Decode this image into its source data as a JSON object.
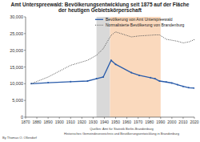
{
  "chart_data": {
    "type": "line",
    "title": "Amt Unterspreewald: Bevölkerungsentwicklung seit 1875 auf der Fläche der heutigen Gebietskörperschaft",
    "x": [
      1875,
      1890,
      1910,
      1925,
      1933,
      1939,
      1946,
      1950,
      1964,
      1971,
      1981,
      1985,
      1989,
      1995,
      2000,
      2005,
      2010,
      2015,
      2020
    ],
    "series": [
      {
        "name": "Bevölkerung von Amt Unterspreewald",
        "color": "#2a5caa",
        "marker": "circle",
        "line_style": "solid",
        "values": [
          10000,
          10300,
          10600,
          10800,
          11500,
          12000,
          17000,
          15800,
          13300,
          12500,
          11800,
          11500,
          10800,
          10500,
          10200,
          9700,
          9200,
          8800,
          8700
        ]
      },
      {
        "name": "Normalisierte Bevölkerung von Brandenburg",
        "color": "#555555",
        "marker": "none",
        "line_style": "dotted",
        "values": [
          10000,
          12000,
          15500,
          17000,
          18500,
          20500,
          24500,
          25500,
          24000,
          24300,
          24500,
          24600,
          24600,
          23300,
          23000,
          22700,
          22200,
          22500,
          23200
        ]
      }
    ],
    "periods": [
      {
        "start": 1933,
        "end": 1945,
        "color": "#d9d9d9"
      },
      {
        "start": 1945,
        "end": 1990,
        "color": "#fad9bd"
      }
    ],
    "xlim": [
      1870,
      2020
    ],
    "xticks": [
      1870,
      1880,
      1890,
      1900,
      1910,
      1920,
      1930,
      1940,
      1950,
      1960,
      1970,
      1980,
      1990,
      2000,
      2010,
      2020
    ],
    "ylim": [
      0,
      30000
    ],
    "yticks": [
      0,
      {
        "value": 5000,
        "label": "5,000"
      },
      {
        "value": 10000,
        "label": "10,000"
      },
      {
        "value": 15000,
        "label": "15,000"
      },
      {
        "value": 20000,
        "label": "20,000"
      },
      {
        "value": 25000,
        "label": "25,000"
      },
      {
        "value": 30000,
        "label": "30,000"
      }
    ],
    "grid": false,
    "legend": "top-right",
    "footer": [
      "By Thomas O. Ollendorf",
      "Quellen: Amt für Statistik Berlin-Brandenburg",
      "Historisches Gemeindeverzeichnis und Bevölkerungsentwicklung in Brandenburg"
    ]
  }
}
